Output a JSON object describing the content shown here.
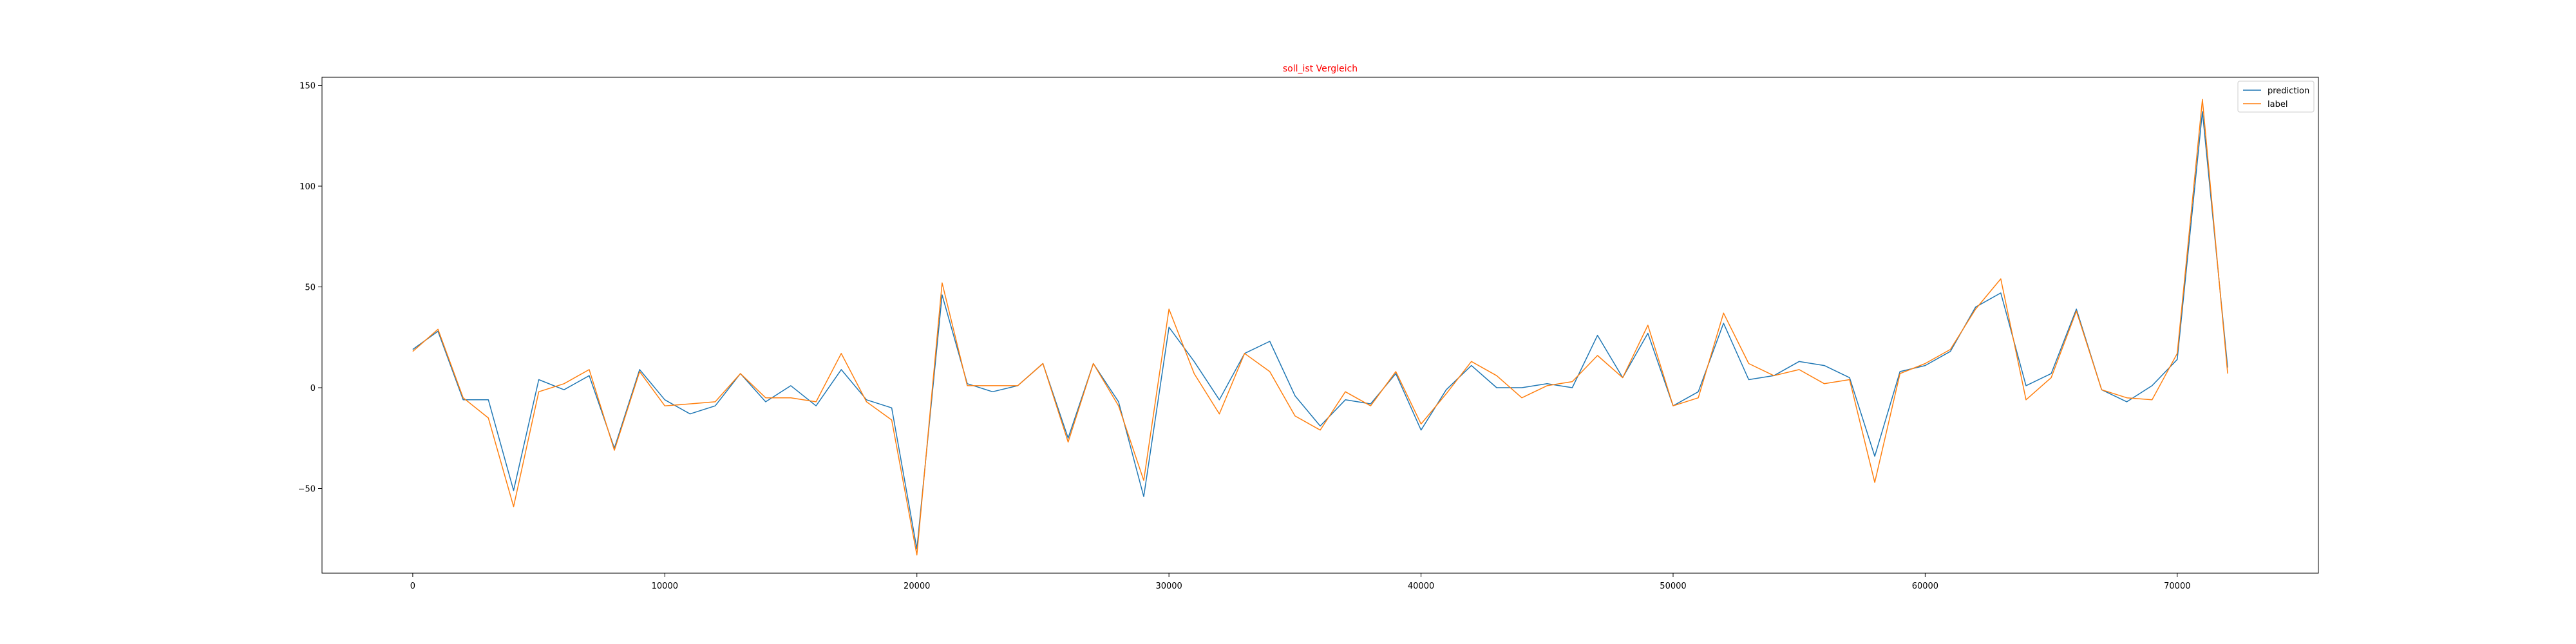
{
  "chart_data": {
    "type": "line",
    "title": "soll_ist Vergleich",
    "title_color": "#ff0000",
    "xlabel": "",
    "ylabel": "",
    "xlim": [
      -3600,
      75600
    ],
    "ylim": [
      -92,
      154
    ],
    "xticks": [
      0,
      10000,
      20000,
      30000,
      40000,
      50000,
      60000,
      70000
    ],
    "yticks": [
      -50,
      0,
      50,
      100,
      150
    ],
    "grid": false,
    "legend": {
      "position": "top-right"
    },
    "x": [
      0,
      1000,
      2000,
      3000,
      4000,
      5000,
      6000,
      7000,
      8000,
      9000,
      10000,
      11000,
      12000,
      13000,
      14000,
      15000,
      16000,
      17000,
      18000,
      19000,
      20000,
      21000,
      22000,
      23000,
      24000,
      25000,
      26000,
      27000,
      28000,
      29000,
      30000,
      31000,
      32000,
      33000,
      34000,
      35000,
      36000,
      37000,
      38000,
      39000,
      40000,
      41000,
      42000,
      43000,
      44000,
      45000,
      46000,
      47000,
      48000,
      49000,
      50000,
      51000,
      52000,
      53000,
      54000,
      55000,
      56000,
      57000,
      58000,
      59000,
      60000,
      61000,
      62000,
      63000,
      64000,
      65000,
      66000,
      67000,
      68000,
      69000,
      70000,
      71000,
      72000
    ],
    "series": [
      {
        "name": "prediction",
        "color": "#1f77b4",
        "values": [
          19,
          28,
          -6,
          -6,
          -51,
          4,
          -1,
          6,
          -30,
          9,
          -6,
          -13,
          -9,
          7,
          -7,
          1,
          -9,
          9,
          -6,
          -10,
          -80,
          46,
          2,
          -2,
          1,
          12,
          -25,
          12,
          -7,
          -54,
          30,
          13,
          -6,
          17,
          23,
          -4,
          -19,
          -6,
          -8,
          7,
          -21,
          -1,
          11,
          0,
          0,
          2,
          0,
          26,
          5,
          27,
          -9,
          -2,
          32,
          4,
          6,
          13,
          11,
          5,
          -34,
          8,
          11,
          18,
          40,
          47,
          1,
          7,
          39,
          -1,
          -7,
          1,
          14,
          137,
          10
        ]
      },
      {
        "name": "label",
        "color": "#ff7f0e",
        "values": [
          18,
          29,
          -5,
          -15,
          -59,
          -2,
          2,
          9,
          -31,
          8,
          -9,
          -8,
          -7,
          7,
          -5,
          -5,
          -7,
          17,
          -7,
          -16,
          -83,
          52,
          1,
          1,
          1,
          12,
          -27,
          12,
          -9,
          -46,
          39,
          7,
          -13,
          17,
          8,
          -14,
          -21,
          -2,
          -9,
          8,
          -18,
          -3,
          13,
          6,
          -5,
          1,
          3,
          16,
          5,
          31,
          -9,
          -5,
          37,
          12,
          6,
          9,
          2,
          4,
          -47,
          7,
          12,
          19,
          39,
          54,
          -6,
          5,
          38,
          -1,
          -5,
          -6,
          17,
          143,
          7
        ]
      }
    ]
  }
}
